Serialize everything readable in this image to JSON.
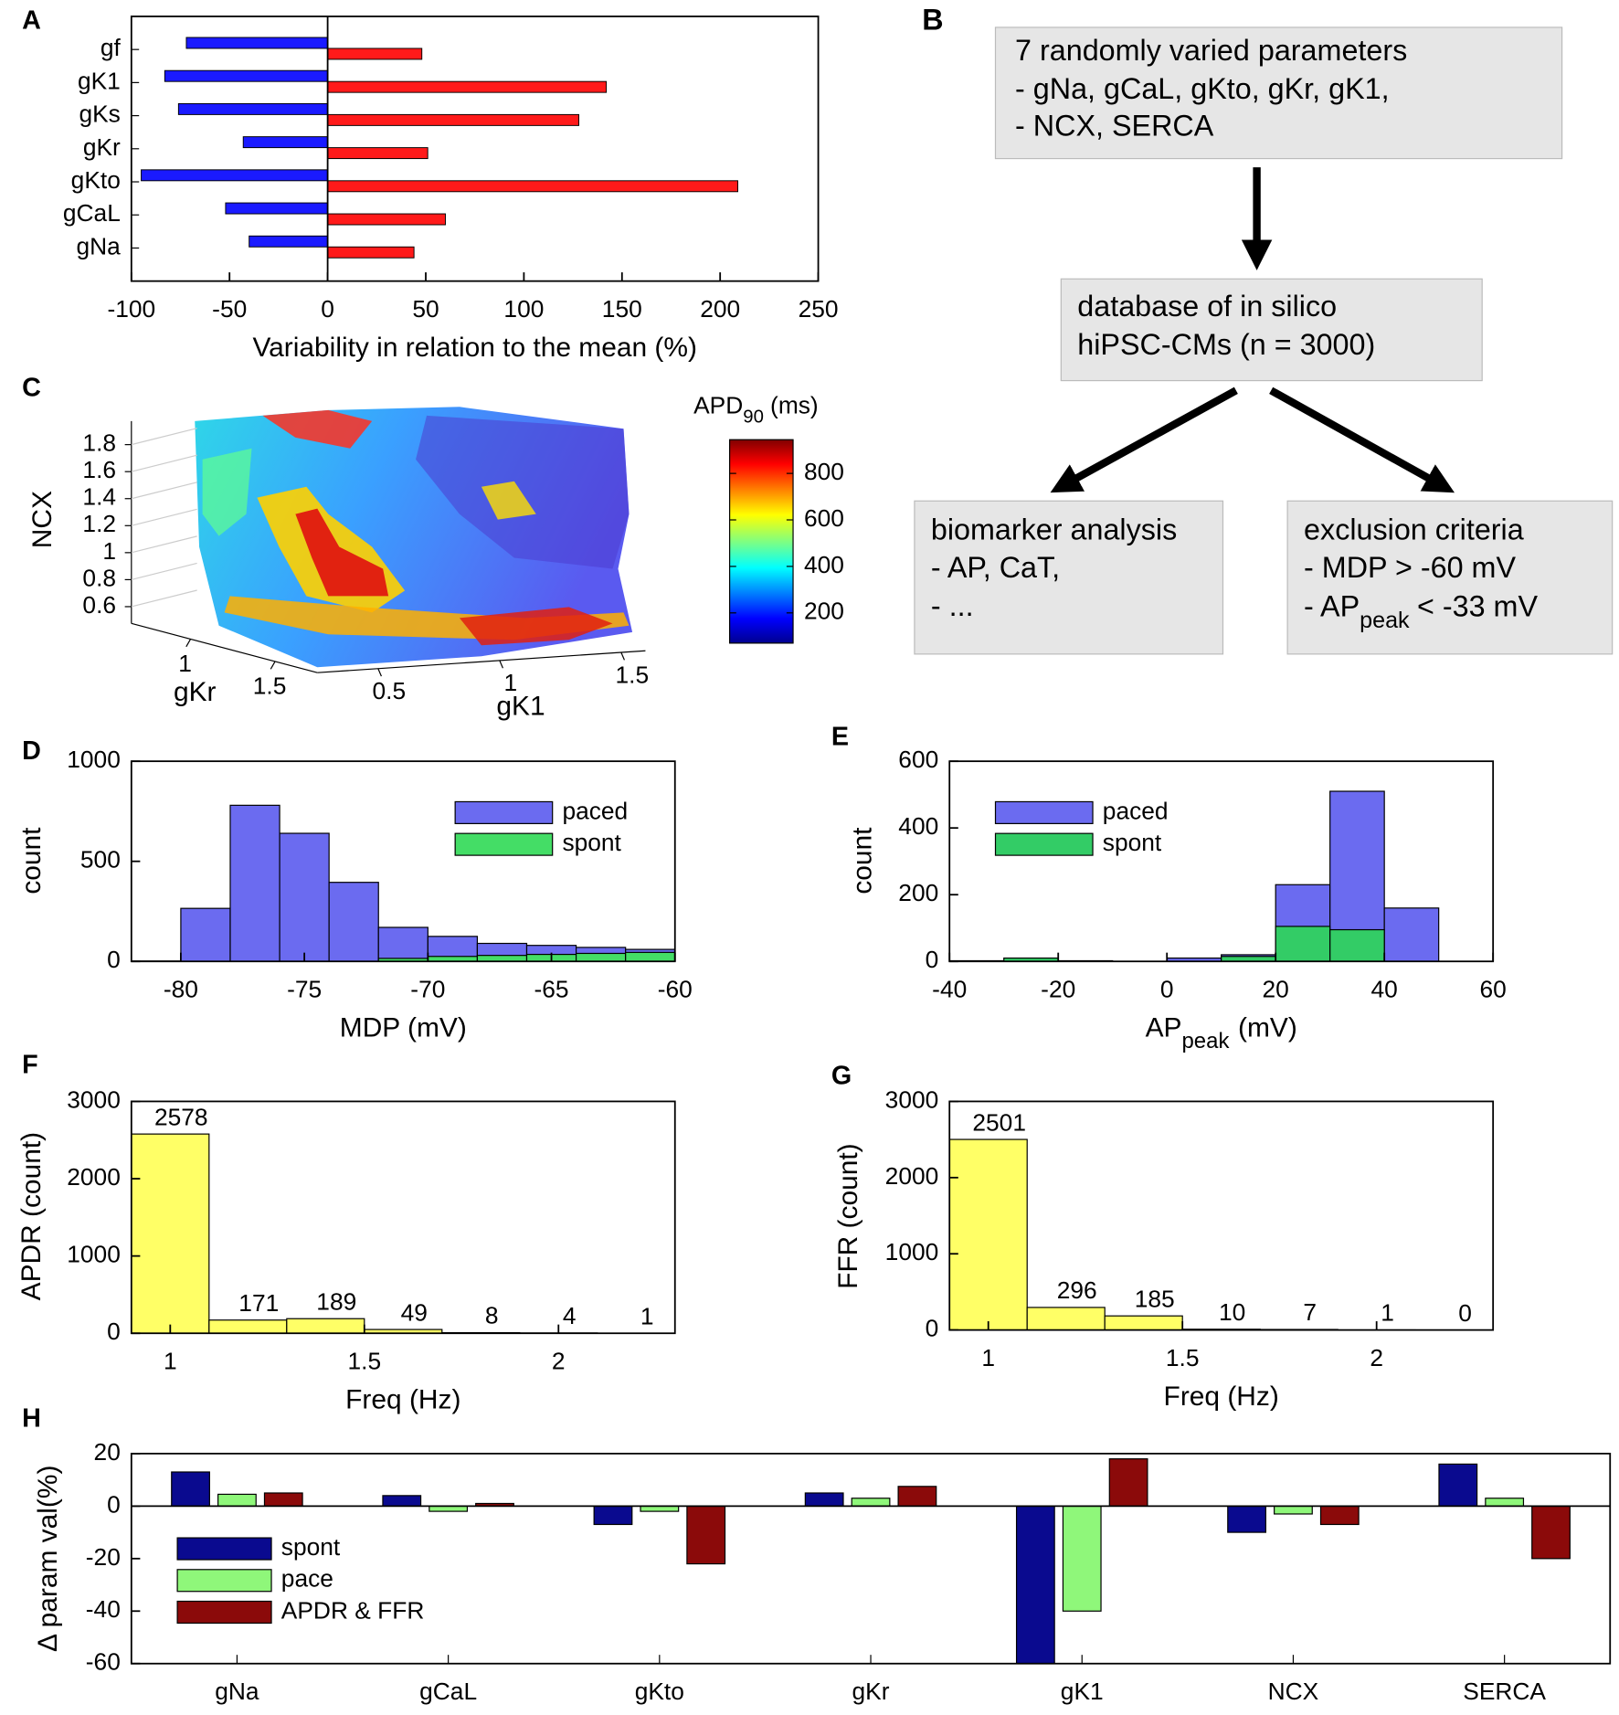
{
  "chart_data": [
    {
      "panel_label": "A",
      "type": "hbar",
      "categories": [
        "gNa",
        "gCaL",
        "gKto",
        "gKr",
        "gKs",
        "gK1",
        "gf"
      ],
      "series": [
        {
          "color": "#1a1aff",
          "values": [
            -40,
            -52,
            -95,
            -43,
            -76,
            -83,
            -72
          ]
        },
        {
          "color": "#ff1a1a",
          "values": [
            44,
            60,
            209,
            51,
            128,
            142,
            48
          ]
        }
      ],
      "xlim": [
        -100,
        250
      ],
      "xticks": [
        -100,
        -50,
        0,
        50,
        100,
        150,
        200,
        250
      ],
      "xlabel": "Variability in relation to the mean (%)"
    },
    {
      "panel_label": "C",
      "type": "surface3d",
      "xlabel": "gK1",
      "xlim": [
        0.25,
        1.6
      ],
      "xticks": [
        0.5,
        1,
        1.5
      ],
      "ylabel": "gKr",
      "ylim": [
        0.65,
        1.75
      ],
      "yticks": [
        1,
        1.5
      ],
      "zlabel": "NCX",
      "zlim": [
        0.5,
        1.95
      ],
      "zticks": [
        0.6,
        0.8,
        1,
        1.2,
        1.4,
        1.6,
        1.8
      ],
      "colorbar": {
        "label": "APD",
        "label_sub": "90",
        "label_rest": "(ms)",
        "clim": [
          70,
          945
        ],
        "ticks": [
          200,
          400,
          600,
          800
        ]
      }
    },
    {
      "panel_label": "D",
      "type": "histogram",
      "bins": [
        -82,
        -80,
        -78,
        -76,
        -74,
        -72,
        -70,
        -68,
        -66,
        -64,
        -62,
        -60
      ],
      "series": [
        {
          "name": "paced",
          "color": "#6b6bf0",
          "values": [
            2,
            265,
            780,
            640,
            395,
            170,
            125,
            90,
            80,
            70,
            60
          ]
        },
        {
          "name": "spont",
          "color": "#44dd66",
          "values": [
            0,
            0,
            0,
            0,
            0,
            15,
            25,
            30,
            35,
            40,
            45
          ]
        }
      ],
      "xlim": [
        -82,
        -60
      ],
      "xticks": [
        -80,
        -75,
        -70,
        -65,
        -60
      ],
      "ylim": [
        0,
        1000
      ],
      "yticks": [
        0,
        500,
        1000
      ],
      "xlabel": "MDP (mV)",
      "ylabel": "count",
      "legend": "top-right"
    },
    {
      "panel_label": "E",
      "type": "histogram",
      "bins": [
        -40,
        -30,
        -20,
        -10,
        0,
        10,
        20,
        30,
        40,
        50,
        60
      ],
      "series": [
        {
          "name": "paced",
          "color": "#6b6bf0",
          "values": [
            2,
            0,
            2,
            0,
            10,
            20,
            230,
            510,
            160,
            0
          ]
        },
        {
          "name": "spont",
          "color": "#33cc66",
          "values": [
            0,
            10,
            0,
            0,
            0,
            15,
            105,
            95,
            0,
            0
          ]
        }
      ],
      "xlim": [
        -40,
        60
      ],
      "xticks": [
        -40,
        -20,
        0,
        20,
        40,
        60
      ],
      "ylim": [
        0,
        600
      ],
      "yticks": [
        0,
        200,
        400,
        600
      ],
      "xlabel": "AP",
      "xlabel_sub": "peak",
      "xlabel_rest": "(mV)",
      "ylabel": "count",
      "legend": "top-left"
    },
    {
      "panel_label": "F",
      "type": "bar",
      "x": [
        1,
        1.2,
        1.4,
        1.6,
        1.8,
        2,
        2.2
      ],
      "values": [
        2578,
        171,
        189,
        49,
        8,
        4,
        1
      ],
      "color": "#ffff66",
      "xlim": [
        0.9,
        2.3
      ],
      "xticks": [
        1,
        1.5,
        2
      ],
      "ylim": [
        0,
        3000
      ],
      "yticks": [
        0,
        1000,
        2000,
        3000
      ],
      "xlabel": "Freq (Hz)",
      "ylabel": "APDR (count)"
    },
    {
      "panel_label": "G",
      "type": "bar",
      "x": [
        1,
        1.2,
        1.4,
        1.6,
        1.8,
        2,
        2.2
      ],
      "values": [
        2501,
        296,
        185,
        10,
        7,
        1,
        0
      ],
      "color": "#ffff66",
      "xlim": [
        0.9,
        2.3
      ],
      "xticks": [
        1,
        1.5,
        2
      ],
      "ylim": [
        0,
        3000
      ],
      "yticks": [
        0,
        1000,
        2000,
        3000
      ],
      "xlabel": "Freq (Hz)",
      "ylabel": "FFR (count)"
    },
    {
      "panel_label": "H",
      "type": "grouped_bar",
      "categories": [
        "gNa",
        "gCaL",
        "gKto",
        "gKr",
        "gK1",
        "NCX",
        "SERCA"
      ],
      "series": [
        {
          "name": "spont",
          "color": "#0a0a8f",
          "values": [
            13,
            4,
            -7,
            5,
            -60,
            -10,
            16
          ]
        },
        {
          "name": "pace",
          "color": "#8ff77a",
          "values": [
            4.5,
            -2,
            -2,
            3,
            -40,
            -3,
            3
          ]
        },
        {
          "name": "APDR & FFR",
          "color": "#8b0a0a",
          "values": [
            5,
            1,
            -22,
            7.5,
            18,
            -7,
            -20
          ]
        }
      ],
      "ylim": [
        -60,
        20
      ],
      "yticks": [
        -60,
        -40,
        -20,
        0,
        20
      ],
      "ylabel": "Δ param val(%)",
      "legend": "left"
    }
  ],
  "diagram": {
    "panel_label": "B",
    "boxes": [
      {
        "lines": [
          "7 randomly varied parameters",
          "- gNa, gCaL, gKto, gKr, gK1,",
          "- NCX, SERCA"
        ]
      },
      {
        "lines": [
          "database of in silico",
          "hiPSC-CMs (n = 3000)"
        ]
      },
      {
        "lines": [
          "biomarker analysis",
          "- AP, CaT,",
          "- ..."
        ]
      },
      {
        "lines": [
          "exclusion criteria",
          "- MDP > -60 mV"
        ],
        "sub_line": {
          "text": "- AP",
          "sub": "peak",
          "rest": "< -33 mV"
        }
      }
    ]
  }
}
